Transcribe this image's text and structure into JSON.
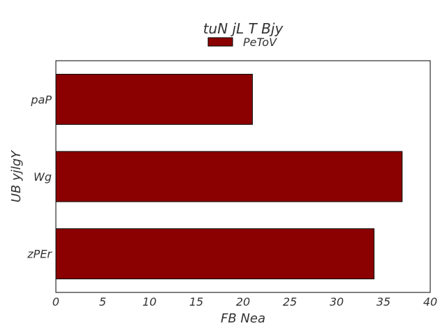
{
  "chart_data": {
    "type": "bar",
    "orientation": "horizontal",
    "title": "tuN jL T Bjy",
    "xlabel": "FB Nea",
    "ylabel": "UB yjlgY",
    "categories": [
      "paP",
      "Wg",
      "zPEr"
    ],
    "series": [
      {
        "name": "PeToV",
        "values": [
          21,
          37,
          34
        ],
        "color": "#8b0000"
      }
    ],
    "xlim": [
      0,
      40
    ],
    "xticks": [
      0,
      5,
      10,
      15,
      20,
      25,
      30,
      35,
      40
    ],
    "grid": false,
    "legend_position": "top-center"
  }
}
